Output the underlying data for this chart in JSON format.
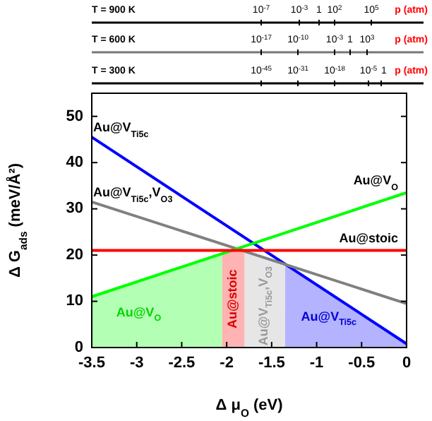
{
  "chart_data": [
    {
      "type": "other",
      "title": "T = 900 K",
      "xlabel": "p (atm)",
      "annotations": [
        "10$^{-7}$",
        "10$^{-3}$",
        "1",
        "10$^{2}$",
        "10$^{5}$"
      ]
    },
    {
      "type": "other",
      "title": "T = 600 K",
      "xlabel": "p (atm)",
      "annotations": [
        "10$^{-17}$",
        "10$^{-10}$",
        "10$^{-3}$",
        "1",
        "10$^{3}$"
      ]
    },
    {
      "type": "other",
      "title": "T = 300 K",
      "xlabel": "p (atm)",
      "annotations": [
        "10$^{-45}$",
        "10$^{-31}$",
        "10$^{-18}$",
        "10$^{-5}$",
        "1"
      ]
    },
    {
      "type": "line",
      "xlabel": "Δ μ$_{O}$ (eV)",
      "ylabel": "Δ G$_{ads}$ (meV/Å²)",
      "x": [
        -3.5,
        0
      ],
      "series": [
        {
          "type": "area",
          "name": "Au@V$_{O}$",
          "color": "#b3ffb3",
          "x": [
            -3.5,
            -2.05
          ],
          "values": [
            11,
            20.3
          ]
        },
        {
          "type": "area",
          "name": "Au@stoic",
          "color": "#ffb3b3",
          "x": [
            -2.05,
            -1.8
          ],
          "values": [
            21,
            21
          ]
        },
        {
          "type": "area",
          "name": "Au@V$_{Ti5c}$,V$_{O3}$",
          "color": "#e6e6e6",
          "x": [
            -1.8,
            -1.35
          ],
          "values": [
            20.8,
            18
          ]
        },
        {
          "type": "area",
          "name": "Au@V$_{Ti5c}$",
          "color": "#b3b3ff",
          "x": [
            -1.35,
            0
          ],
          "values": [
            18,
            0.8
          ]
        },
        {
          "name": "Au@V$_{Ti5c}$",
          "color": "#0000ff",
          "values": [
            45.5,
            0.8
          ]
        },
        {
          "name": "Au@V$_{Ti5c}$,V$_{O3}$",
          "color": "#808080",
          "values": [
            31.5,
            9.5
          ]
        },
        {
          "name": "Au@V$_{O}$",
          "color": "#00ff00",
          "values": [
            11,
            33.5
          ]
        },
        {
          "name": "Au@stoic",
          "color": "#ff0000",
          "values": [
            21,
            21
          ]
        }
      ],
      "xlim": [
        -3.5,
        0
      ],
      "xticks": [
        -3.5,
        -3,
        -2.5,
        -2,
        -1.5,
        -1,
        -0.5,
        0
      ],
      "ylim": [
        0,
        55
      ],
      "yticks": [
        0,
        10,
        20,
        30,
        40,
        50
      ],
      "grid": false,
      "marker": "none",
      "line_style": "solid"
    }
  ]
}
